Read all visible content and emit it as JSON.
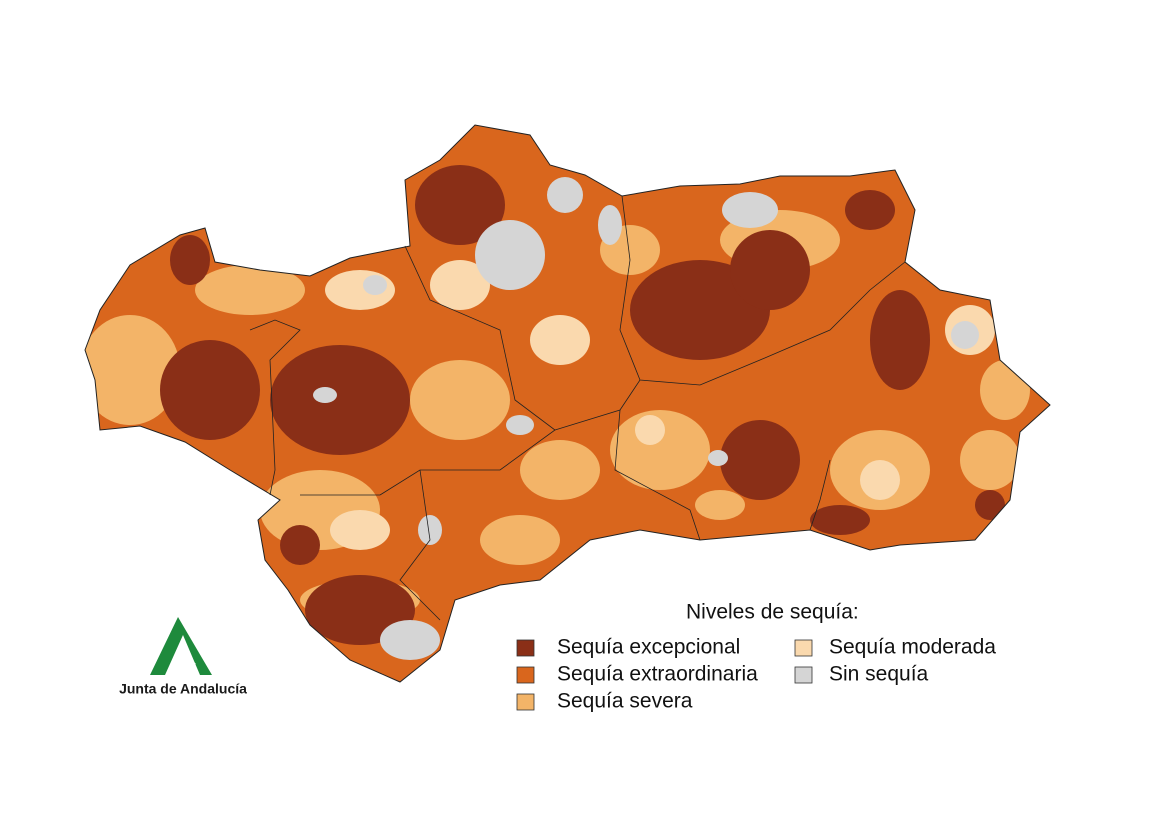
{
  "legend": {
    "title": "Niveles de sequía:",
    "items": [
      {
        "name": "Sequía excepcional",
        "color": "#8a2f17"
      },
      {
        "name": "Sequía extraordinaria",
        "color": "#d9661d"
      },
      {
        "name": "Sequía severa",
        "color": "#f3b468"
      },
      {
        "name": "Sequía moderada",
        "color": "#fad9ae"
      },
      {
        "name": "Sin sequía",
        "color": "#d5d5d5"
      }
    ]
  },
  "logo": {
    "text": "Junta de Andalucía"
  }
}
